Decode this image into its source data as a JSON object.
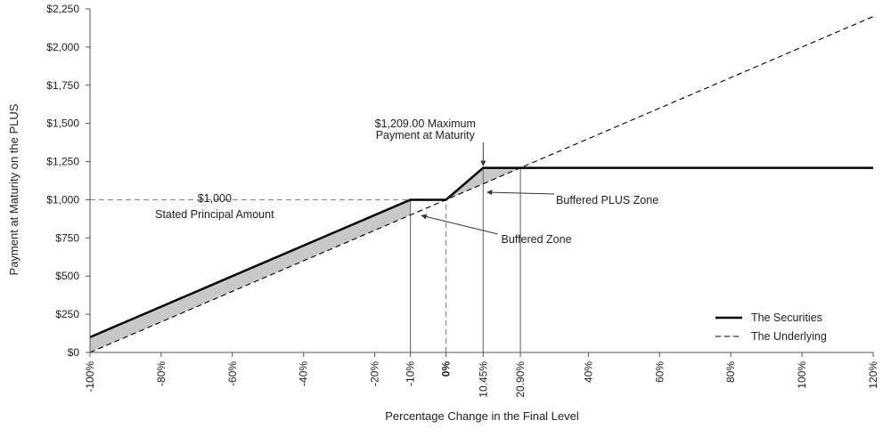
{
  "chart_data": {
    "type": "line",
    "title": "",
    "xlabel": "Percentage Change in the Final Level",
    "ylabel": "Payment at Maturity on the PLUS",
    "xlim": [
      -100,
      120
    ],
    "ylim": [
      0,
      2250
    ],
    "grid": false,
    "legend_position": "bottom-right",
    "x_ticks": [
      -100,
      -80,
      -60,
      -40,
      -20,
      -10,
      0,
      10.45,
      20.9,
      40,
      60,
      80,
      100,
      120
    ],
    "x_tick_labels": [
      "-100%",
      "-80%",
      "-60%",
      "-40%",
      "-20%",
      "-10%",
      "0%",
      "10.45%",
      "20.90%",
      "40%",
      "60%",
      "80%",
      "100%",
      "120%"
    ],
    "y_ticks": [
      0,
      250,
      500,
      750,
      1000,
      1250,
      1500,
      1750,
      2000,
      2250
    ],
    "y_tick_labels": [
      "$0",
      "$250",
      "$500",
      "$750",
      "$1,000",
      "$1,250",
      "$1,500",
      "$1,750",
      "$2,000",
      "$2,250"
    ],
    "series": [
      {
        "name": "The Securities",
        "style": "solid-thick",
        "color": "#000000",
        "points": [
          [
            -100,
            100
          ],
          [
            -10,
            1000
          ],
          [
            0,
            1000
          ],
          [
            10.45,
            1209
          ],
          [
            120,
            1209
          ]
        ]
      },
      {
        "name": "The Underlying",
        "style": "dashed",
        "color": "#000000",
        "points": [
          [
            -100,
            0
          ],
          [
            120,
            2200
          ]
        ]
      }
    ],
    "shaded_regions": [
      {
        "polygon": [
          [
            -100,
            100
          ],
          [
            -10,
            1000
          ],
          [
            -10,
            900
          ],
          [
            -100,
            0
          ]
        ],
        "color": "#c8c8c8"
      },
      {
        "polygon": [
          [
            0,
            1000
          ],
          [
            10.45,
            1209
          ],
          [
            20.9,
            1209
          ],
          [
            10.45,
            1104.5
          ]
        ],
        "color": "#c8c8c8"
      }
    ],
    "reference_lines": [
      {
        "type": "horizontal-dashed",
        "y": 1000,
        "x_from": -100,
        "x_to": 0
      },
      {
        "type": "vertical",
        "x": -10,
        "y_to": 1000
      },
      {
        "type": "vertical-dashed",
        "x": 0,
        "y_to": 1000
      },
      {
        "type": "vertical",
        "x": 10.45,
        "y_to": 1209
      },
      {
        "type": "vertical",
        "x": 20.9,
        "y_to": 1209
      }
    ],
    "annotations": [
      {
        "id": "max",
        "lines": [
          "$1,209.00 Maximum",
          "Payment at Maturity"
        ]
      },
      {
        "id": "principal",
        "lines": [
          "$1,000",
          "Stated Principal Amount"
        ]
      },
      {
        "id": "plus_zone",
        "lines": [
          "Buffered PLUS Zone"
        ]
      },
      {
        "id": "buffered_zone",
        "lines": [
          "Buffered Zone"
        ]
      }
    ]
  }
}
